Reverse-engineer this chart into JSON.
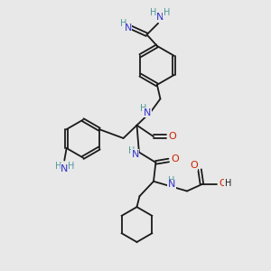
{
  "bg_color": "#e8e8e8",
  "bond_color": "#1a1a1a",
  "N_color": "#3333cc",
  "O_color": "#cc2200",
  "H_color": "#4d9999",
  "fs": 7.5,
  "lw": 1.3,
  "figsize": [
    3.0,
    3.0
  ],
  "dpi": 100,
  "xlim": [
    0,
    10
  ],
  "ylim": [
    0,
    10
  ]
}
